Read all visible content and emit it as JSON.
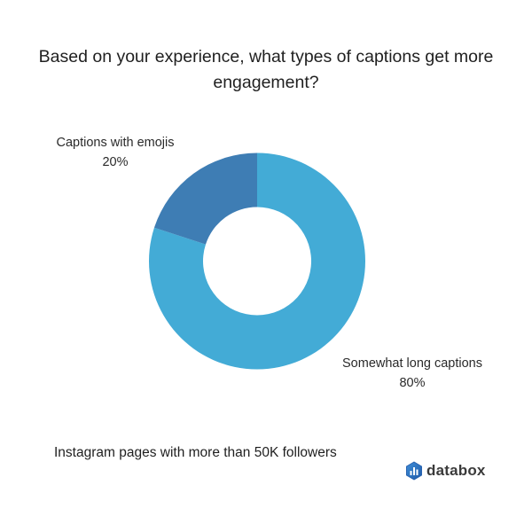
{
  "header": {
    "title": "Based on your experience, what types of captions get more engagement?"
  },
  "chart_data": {
    "type": "pie",
    "variant": "donut",
    "title": "Based on your experience, what types of captions get more engagement?",
    "categories": [
      "Somewhat long captions",
      "Captions with emojis"
    ],
    "values": [
      80,
      20
    ],
    "unit": "%",
    "colors": [
      "#43abd6",
      "#3e7db4"
    ],
    "labels": [
      {
        "name": "Somewhat long captions",
        "value": "80%"
      },
      {
        "name": "Captions with emojis",
        "value": "20%"
      }
    ],
    "legend": "none (direct labels)",
    "subtitle": "Instagram pages with more than 50K followers"
  },
  "labels": {
    "emojis": {
      "name": "Captions with emojis",
      "value": "20%"
    },
    "long": {
      "name": "Somewhat long captions",
      "value": "80%"
    }
  },
  "footer": {
    "note": "Instagram pages with more than 50K followers",
    "brand": "databox",
    "brand_color": "#2f6fc0"
  }
}
